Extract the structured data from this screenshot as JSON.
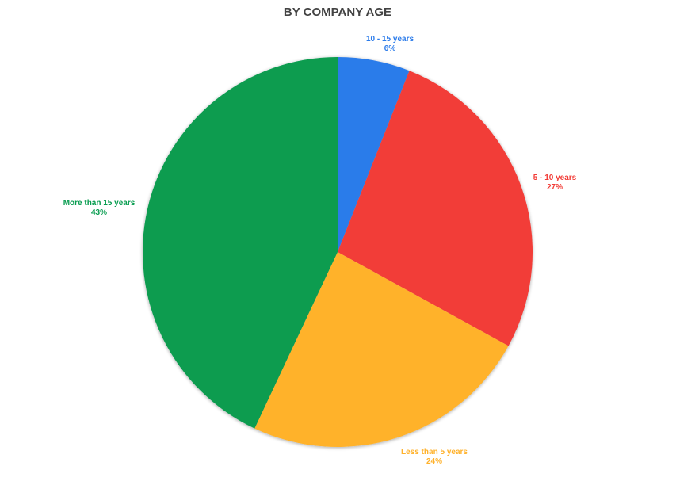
{
  "chart_data": {
    "type": "pie",
    "title": "BY COMPANY AGE",
    "slices": [
      {
        "label": "10 - 15 years",
        "value": 6,
        "display": "6%",
        "color": "#2b7bea"
      },
      {
        "label": "5 - 10 years",
        "value": 27,
        "display": "27%",
        "color": "#f23c37"
      },
      {
        "label": "Less than 5 years",
        "value": 24,
        "display": "24%",
        "color": "#ffb22c"
      },
      {
        "label": "More than 15 years",
        "value": 43,
        "display": "43%",
        "color": "#079c4f"
      }
    ],
    "start_angle_deg": 0,
    "direction": "clockwise",
    "legend": "none",
    "label_placement": "outside"
  }
}
